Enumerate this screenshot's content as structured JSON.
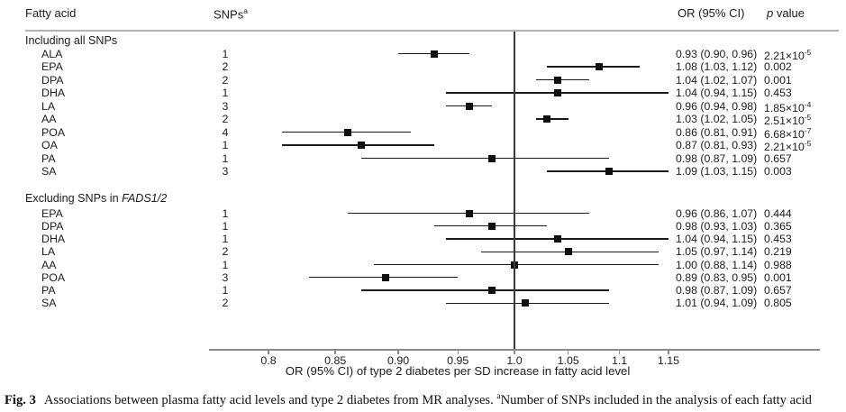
{
  "header": {
    "fatty_acid": "Fatty acid",
    "snps": "SNPs",
    "snps_sup": "a",
    "or_ci": "OR (95% CI)",
    "p_italic": "p",
    "p_rest": " value"
  },
  "chart_data": {
    "type": "forest",
    "x_axis": {
      "scale": "log",
      "ticks": [
        0.8,
        0.85,
        0.9,
        0.95,
        1.0,
        1.05,
        1.1,
        1.15
      ],
      "tick_labels": [
        "0.8",
        "0.85",
        "0.90",
        "0.95",
        "1.0",
        "1.05",
        "1.1",
        "1.15"
      ],
      "range": [
        0.78,
        1.18
      ],
      "ref_line": 1.0,
      "label": "OR (95% CI) of type 2 diabetes per SD increase in fatty acid level"
    },
    "groups": [
      {
        "label": "Including all SNPs",
        "label_italic": "",
        "rows": [
          {
            "name": "ALA",
            "snps": "1",
            "or": 0.93,
            "ci": [
              0.9,
              0.96
            ],
            "or_text": "0.93 (0.90, 0.96)",
            "p": "2.21×10^-5"
          },
          {
            "name": "EPA",
            "snps": "2",
            "or": 1.08,
            "ci": [
              1.03,
              1.12
            ],
            "or_text": "1.08 (1.03, 1.12)",
            "p": "0.002"
          },
          {
            "name": "DPA",
            "snps": "2",
            "or": 1.04,
            "ci": [
              1.02,
              1.07
            ],
            "or_text": "1.04 (1.02, 1.07)",
            "p": "0.001"
          },
          {
            "name": "DHA",
            "snps": "1",
            "or": 1.04,
            "ci": [
              0.94,
              1.15
            ],
            "or_text": "1.04 (0.94, 1.15)",
            "p": "0.453"
          },
          {
            "name": "LA",
            "snps": "3",
            "or": 0.96,
            "ci": [
              0.94,
              0.98
            ],
            "or_text": "0.96 (0.94, 0.98)",
            "p": "1.85×10^-4"
          },
          {
            "name": "AA",
            "snps": "2",
            "or": 1.03,
            "ci": [
              1.02,
              1.05
            ],
            "or_text": "1.03 (1.02, 1.05)",
            "p": "2.51×10^-5"
          },
          {
            "name": "POA",
            "snps": "4",
            "or": 0.86,
            "ci": [
              0.81,
              0.91
            ],
            "or_text": "0.86 (0.81, 0.91)",
            "p": "6.68×10^-7"
          },
          {
            "name": "OA",
            "snps": "1",
            "or": 0.87,
            "ci": [
              0.81,
              0.93
            ],
            "or_text": "0.87 (0.81, 0.93)",
            "p": "2.21×10^-5"
          },
          {
            "name": "PA",
            "snps": "1",
            "or": 0.98,
            "ci": [
              0.87,
              1.09
            ],
            "or_text": "0.98 (0.87, 1.09)",
            "p": "0.657"
          },
          {
            "name": "SA",
            "snps": "3",
            "or": 1.09,
            "ci": [
              1.03,
              1.15
            ],
            "or_text": "1.09 (1.03, 1.15)",
            "p": "0.003"
          }
        ]
      },
      {
        "label": "Excluding SNPs in ",
        "label_italic": "FADS1/2",
        "rows": [
          {
            "name": "EPA",
            "snps": "1",
            "or": 0.96,
            "ci": [
              0.86,
              1.07
            ],
            "or_text": "0.96 (0.86, 1.07)",
            "p": "0.444"
          },
          {
            "name": "DPA",
            "snps": "1",
            "or": 0.98,
            "ci": [
              0.93,
              1.03
            ],
            "or_text": "0.98 (0.93, 1.03)",
            "p": "0.365"
          },
          {
            "name": "DHA",
            "snps": "1",
            "or": 1.04,
            "ci": [
              0.94,
              1.15
            ],
            "or_text": "1.04 (0.94, 1.15)",
            "p": "0.453"
          },
          {
            "name": "LA",
            "snps": "2",
            "or": 1.05,
            "ci": [
              0.97,
              1.14
            ],
            "or_text": "1.05 (0.97, 1.14)",
            "p": "0.219"
          },
          {
            "name": "AA",
            "snps": "1",
            "or": 1.0,
            "ci": [
              0.88,
              1.14
            ],
            "or_text": "1.00 (0.88, 1.14)",
            "p": "0.988"
          },
          {
            "name": "POA",
            "snps": "3",
            "or": 0.89,
            "ci": [
              0.83,
              0.95
            ],
            "or_text": "0.89 (0.83, 0.95)",
            "p": "0.001"
          },
          {
            "name": "PA",
            "snps": "1",
            "or": 0.98,
            "ci": [
              0.87,
              1.09
            ],
            "or_text": "0.98 (0.87, 1.09)",
            "p": "0.657"
          },
          {
            "name": "SA",
            "snps": "2",
            "or": 1.01,
            "ci": [
              0.94,
              1.09
            ],
            "or_text": "1.01 (0.94, 1.09)",
            "p": "0.805"
          }
        ]
      }
    ],
    "title": "",
    "legend": null
  },
  "caption": {
    "fig": "Fig. 3",
    "body": "Associations between plasma fatty acid levels and type 2 diabetes from MR analyses. ",
    "sup": "a",
    "rest": "Number of SNPs included in the analysis of each fatty acid"
  }
}
